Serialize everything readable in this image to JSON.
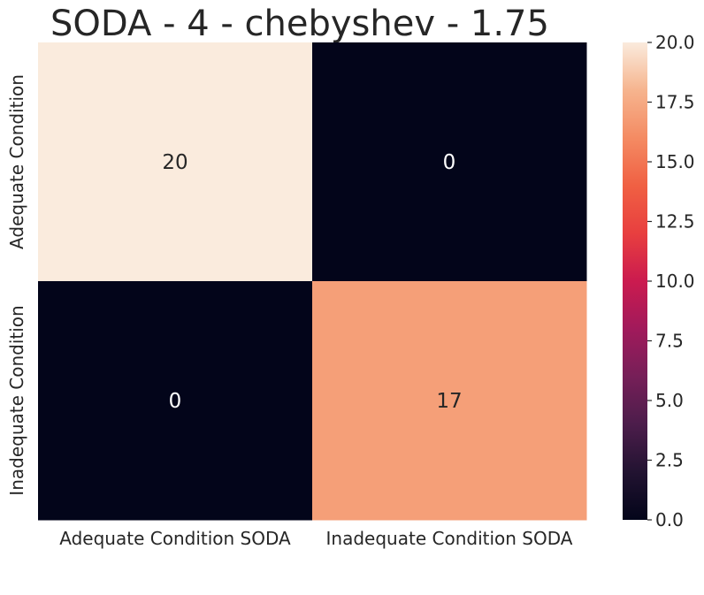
{
  "chart_data": {
    "type": "heatmap",
    "title": "SODA - 4 - chebyshev - 1.75",
    "xlabel": "",
    "ylabel": "",
    "x_categories": [
      "Adequate Condition SODA",
      "Inadequate Condition SODA"
    ],
    "y_categories": [
      "Adequate Condition",
      "Inadequate Condition"
    ],
    "values": [
      [
        20,
        0
      ],
      [
        0,
        17
      ]
    ],
    "annotations": [
      [
        "20",
        "0"
      ],
      [
        "0",
        "17"
      ]
    ],
    "colorbar": {
      "min": 0.0,
      "max": 20.0,
      "ticks": [
        "0.0",
        "2.5",
        "5.0",
        "7.5",
        "10.0",
        "12.5",
        "15.0",
        "17.5",
        "20.0"
      ],
      "colormap": "rocket"
    },
    "grid": false
  }
}
